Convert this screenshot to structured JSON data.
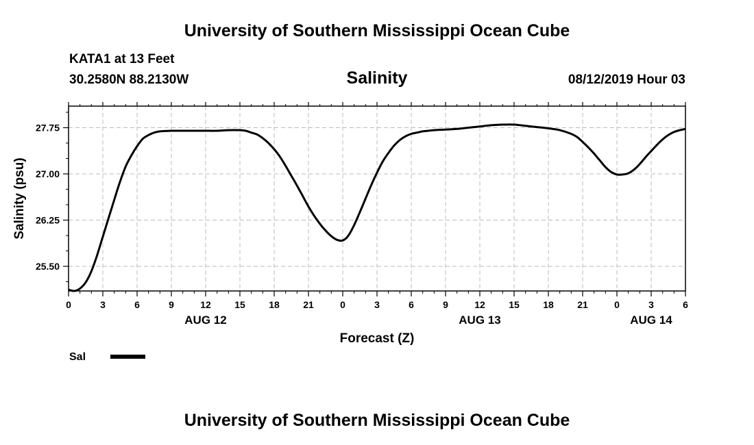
{
  "header": {
    "title": "University of Southern Mississippi Ocean Cube",
    "station": "KATA1 at 13 Feet",
    "coords": "30.2580N 88.2130W",
    "datetime": "08/12/2019 Hour 03"
  },
  "footer": {
    "title": "University of Southern Mississippi Ocean Cube"
  },
  "chart_data": {
    "type": "line",
    "title": "Salinity",
    "xlabel": "Forecast (Z)",
    "ylabel": "Salinity (psu)",
    "xlim": [
      0,
      54
    ],
    "ylim": [
      25.1,
      28.1
    ],
    "x_unit": "hours since 08/12 00Z",
    "yticks": [
      25.5,
      26.25,
      27.0,
      27.75
    ],
    "ytick_labels": [
      "25.50",
      "26.25",
      "27.00",
      "27.75"
    ],
    "xticks": [
      0,
      3,
      6,
      9,
      12,
      15,
      18,
      21,
      24,
      27,
      30,
      33,
      36,
      39,
      42,
      45,
      48,
      51,
      54
    ],
    "xtick_labels": [
      "0",
      "3",
      "6",
      "9",
      "12",
      "15",
      "18",
      "21",
      "0",
      "3",
      "6",
      "9",
      "12",
      "15",
      "18",
      "21",
      "0",
      "3",
      "6"
    ],
    "date_labels": [
      {
        "x": 12,
        "label": "AUG 12"
      },
      {
        "x": 36,
        "label": "AUG 13"
      },
      {
        "x": 51,
        "label": "AUG 14"
      }
    ],
    "grid": true,
    "color": "#000000",
    "legend_position": "bottom-left",
    "series": [
      {
        "name": "Sal",
        "x": [
          0,
          0.5,
          1,
          1.5,
          2,
          2.5,
          3,
          3.5,
          4,
          4.5,
          5,
          5.5,
          6,
          6.5,
          7,
          7.5,
          8,
          9,
          10,
          11,
          12,
          13,
          14,
          15,
          15.5,
          16,
          16.5,
          17,
          17.5,
          18,
          18.5,
          19,
          19.5,
          20,
          20.5,
          21,
          21.5,
          22,
          22.5,
          23,
          23.5,
          24,
          24.5,
          25,
          25.5,
          26,
          26.5,
          27,
          27.5,
          28,
          28.5,
          29,
          29.5,
          30,
          30.5,
          31,
          31.5,
          32,
          33,
          34,
          35,
          36,
          37,
          38,
          39,
          40,
          41,
          42,
          43,
          44,
          44.5,
          45,
          45.5,
          46,
          46.5,
          47,
          47.5,
          48,
          48.5,
          49,
          49.5,
          50,
          50.5,
          51,
          51.5,
          52,
          52.5,
          53,
          53.5,
          54
        ],
        "values": [
          25.12,
          25.1,
          25.14,
          25.24,
          25.42,
          25.68,
          25.98,
          26.28,
          26.58,
          26.87,
          27.12,
          27.3,
          27.45,
          27.57,
          27.63,
          27.67,
          27.69,
          27.7,
          27.7,
          27.7,
          27.7,
          27.7,
          27.71,
          27.71,
          27.7,
          27.67,
          27.64,
          27.58,
          27.5,
          27.4,
          27.28,
          27.13,
          26.97,
          26.81,
          26.64,
          26.47,
          26.32,
          26.19,
          26.08,
          25.99,
          25.93,
          25.92,
          26.0,
          26.17,
          26.38,
          26.6,
          26.82,
          27.02,
          27.2,
          27.34,
          27.46,
          27.55,
          27.61,
          27.65,
          27.67,
          27.69,
          27.7,
          27.71,
          27.72,
          27.73,
          27.75,
          27.77,
          27.79,
          27.8,
          27.8,
          27.78,
          27.76,
          27.74,
          27.71,
          27.65,
          27.6,
          27.52,
          27.43,
          27.33,
          27.22,
          27.11,
          27.03,
          26.99,
          26.99,
          27.01,
          27.07,
          27.16,
          27.27,
          27.37,
          27.47,
          27.56,
          27.63,
          27.68,
          27.71,
          27.73
        ]
      }
    ]
  }
}
